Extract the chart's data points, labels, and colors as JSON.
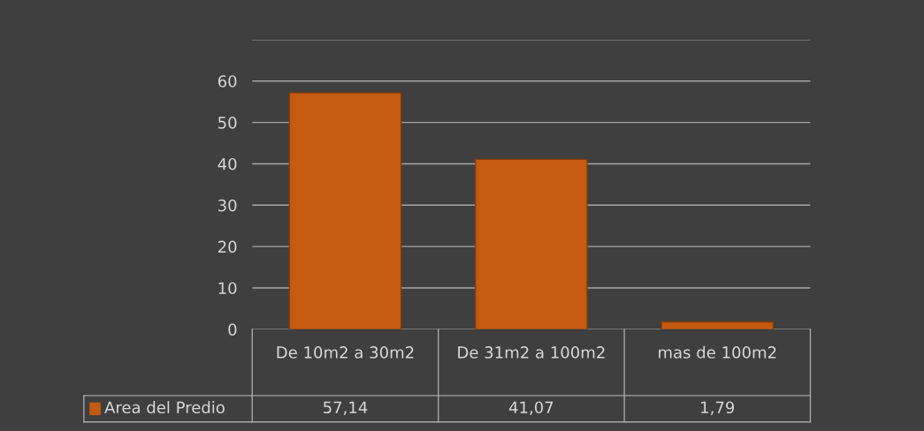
{
  "chart_data": {
    "type": "bar",
    "categories": [
      "De 10m2 a 30m2",
      "De 31m2 a 100m2",
      "mas de 100m2"
    ],
    "series": [
      {
        "name": "Area del Predio",
        "color": "#c55a11",
        "values": [
          57.14,
          41.07,
          1.79
        ],
        "value_labels": [
          "57,14",
          "41,07",
          "1,79"
        ]
      }
    ],
    "ylim": [
      0,
      70
    ],
    "yticks": [
      0,
      10,
      20,
      30,
      40,
      50,
      60,
      {
        "value": 70,
        "label": null
      }
    ],
    "grid": "y",
    "legend": "bottom left"
  }
}
